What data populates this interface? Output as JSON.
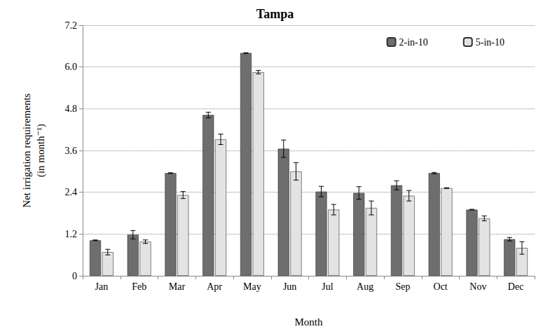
{
  "chart_data": {
    "type": "bar",
    "title": "Tampa",
    "x_label": "Month",
    "y_label": "Net irrigation requirements\n(in month⁻¹)",
    "categories": [
      "Jan",
      "Feb",
      "Mar",
      "Apr",
      "May",
      "Jun",
      "Jul",
      "Aug",
      "Sep",
      "Oct",
      "Nov",
      "Dec"
    ],
    "series": [
      {
        "name": "2-in-10",
        "color": "#6e6e6e",
        "values": [
          1.02,
          1.18,
          2.95,
          4.62,
          6.4,
          3.65,
          2.42,
          2.38,
          2.6,
          2.95,
          1.9,
          1.05
        ],
        "errors": [
          0.01,
          0.12,
          0.01,
          0.08,
          0.01,
          0.25,
          0.15,
          0.18,
          0.13,
          0.02,
          0.01,
          0.05
        ]
      },
      {
        "name": "5-in-10",
        "color": "#e3e3e3",
        "values": [
          0.68,
          0.98,
          2.32,
          3.92,
          5.85,
          3.0,
          1.9,
          1.95,
          2.3,
          2.52,
          1.65,
          0.8
        ],
        "errors": [
          0.08,
          0.05,
          0.1,
          0.15,
          0.05,
          0.25,
          0.15,
          0.2,
          0.15,
          0.01,
          0.07,
          0.18
        ]
      }
    ],
    "ylim": [
      0,
      7.2
    ],
    "yticks": [
      0,
      1.2,
      2.4,
      3.6,
      4.8,
      {
        "value": 6,
        "label": "6.0"
      },
      7.2
    ],
    "grid": true,
    "legend": "top-right"
  }
}
